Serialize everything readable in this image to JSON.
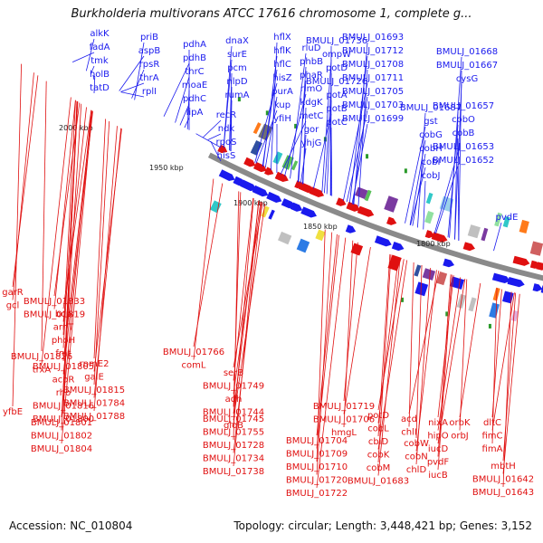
{
  "title": "Burkholderia multivorans ATCC 17616 chromosome 1, complete g...",
  "footer": {
    "accession": "Accession: NC_010804",
    "summary": "Topology: circular; Length: 3,448,421 bp; Genes: 3,152"
  },
  "colors": {
    "forward": "#1a1aee",
    "reverse": "#e01010",
    "backbone": "#8a8a8a",
    "tick": "#2a9a2a"
  },
  "scale_labels": [
    "2000 kbp",
    "1950 kbp",
    "1900 kbp",
    "1850 kbp",
    "1800 kbp"
  ],
  "forward_labels": [
    "alkK",
    "fadA",
    "tmk",
    "holB",
    "tatD",
    "priB",
    "aspB",
    "rpsR",
    "thrA",
    "rplI",
    "pdhA",
    "pdhB",
    "thrC",
    "moaE",
    "pdhC",
    "lipA",
    "dnaX",
    "surE",
    "pcm",
    "nlpD",
    "rumA",
    "recR",
    "ndk",
    "rpoS",
    "hisS",
    "hflX",
    "hflK",
    "hflC",
    "hisZ",
    "purA",
    "kup",
    "yfiH",
    "rluD",
    "phbB",
    "phaR",
    "rimO",
    "kdgK",
    "metC",
    "gor",
    "yhjG",
    "BMULJ_01736",
    "ompW",
    "potD",
    "BMULJ_01726",
    "potA",
    "potB",
    "potC",
    "BMULJ_01693",
    "BMULJ_01712",
    "BMULJ_01708",
    "BMULJ_01711",
    "BMULJ_01705",
    "BMULJ_01703",
    "BMULJ_01699",
    "BMULJ_01687",
    "gst",
    "cobG",
    "cobH",
    "cobI",
    "cobJ",
    "BMULJ_01668",
    "BMULJ_01667",
    "cysG",
    "BMULJ_01657",
    "cobO",
    "cobB",
    "BMULJ_01653",
    "BMULJ_01652",
    "pvdE"
  ],
  "reverse_labels": [
    "garR",
    "gcl",
    "BMULJ_01833",
    "BMULJ_01819",
    "bcp",
    "arnT",
    "phoH",
    "fmt",
    "BMULJ_01805",
    "acoR",
    "BMULJ_01826",
    "trxA",
    "rpmE2",
    "galE",
    "BMULJ_01815",
    "BMULJ_01784",
    "BMULJ_01788",
    "rho",
    "BMULJ_01816",
    "BMULJ_01800",
    "yfbE",
    "BMULJ_01801",
    "BMULJ_01802",
    "BMULJ_01804",
    "BMULJ_01766",
    "comL",
    "serB",
    "BMULJ_01749",
    "adh",
    "BMULJ_01744",
    "gloB",
    "BMULJ_01745",
    "BMULJ_01755",
    "BMULJ_01728",
    "BMULJ_01734",
    "BMULJ_01738",
    "BMULJ_01719",
    "BMULJ_01706",
    "hmgL",
    "BMULJ_01704",
    "BMULJ_01709",
    "BMULJ_01710",
    "BMULJ_01720",
    "BMULJ_01722",
    "potD",
    "cobL",
    "cbiD",
    "cobK",
    "cobM",
    "BMULJ_01683",
    "acd",
    "chlI",
    "cobW",
    "cobN",
    "chlD",
    "nixA",
    "hipO",
    "iucD",
    "pvdF",
    "iucB",
    "orbK",
    "orbJ",
    "dltC",
    "fimC",
    "fimA",
    "mbtH",
    "BMULJ_01642",
    "BMULJ_01643"
  ]
}
